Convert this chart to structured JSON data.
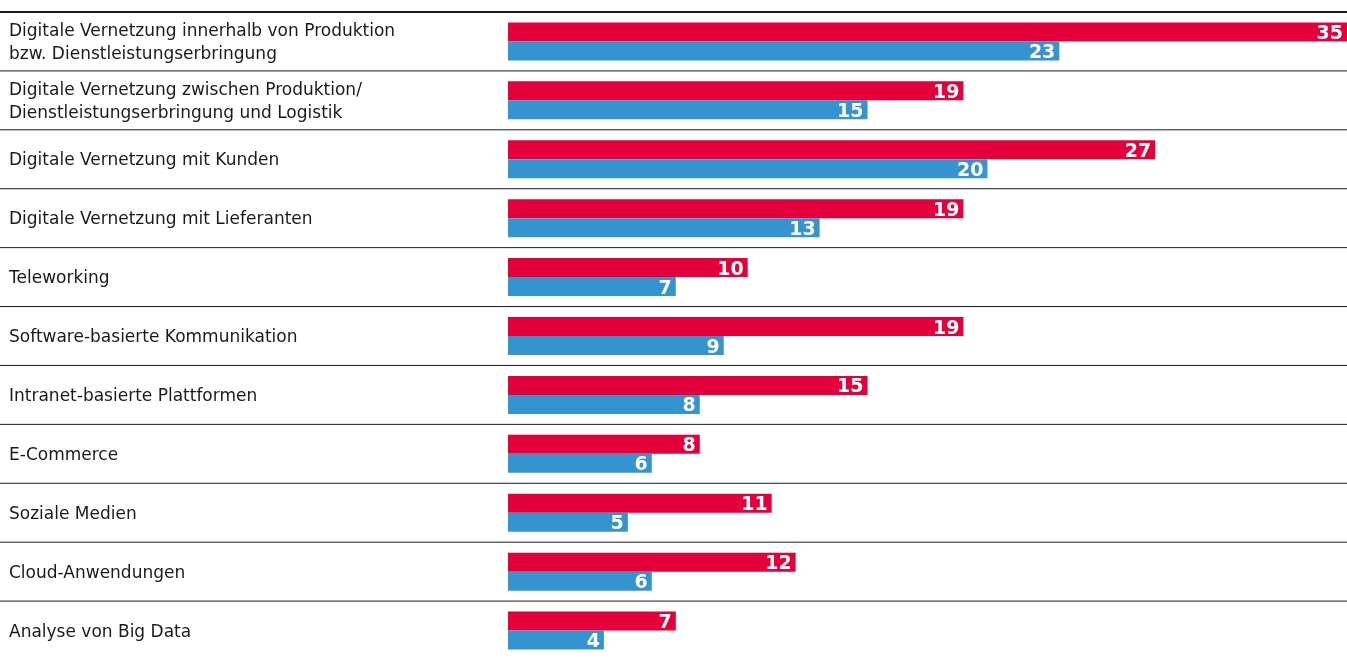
{
  "chart_data": {
    "type": "bar",
    "orientation": "horizontal",
    "categories": [
      "Digitale Vernetzung innerhalb von Produktion bzw. Dienstleistungserbringung",
      "Digitale Vernetzung zwischen Produktion/ Dienstleistungserbringung und Logistik",
      "Digitale Vernetzung mit Kunden",
      "Digitale Vernetzung mit Lieferanten",
      "Teleworking",
      "Software-basierte Kommunikation",
      "Intranet-basierte Plattformen",
      "E-Commerce",
      "Soziale Medien",
      "Cloud-Anwendungen",
      "Analyse von Big Data"
    ],
    "series": [
      {
        "color": "#e4003a",
        "values": [
          35,
          19,
          27,
          19,
          10,
          19,
          15,
          8,
          11,
          12,
          7
        ]
      },
      {
        "color": "#3593d0",
        "values": [
          23,
          15,
          20,
          13,
          7,
          9,
          8,
          6,
          5,
          6,
          4
        ]
      }
    ],
    "data_labels": true,
    "grid": "y"
  }
}
